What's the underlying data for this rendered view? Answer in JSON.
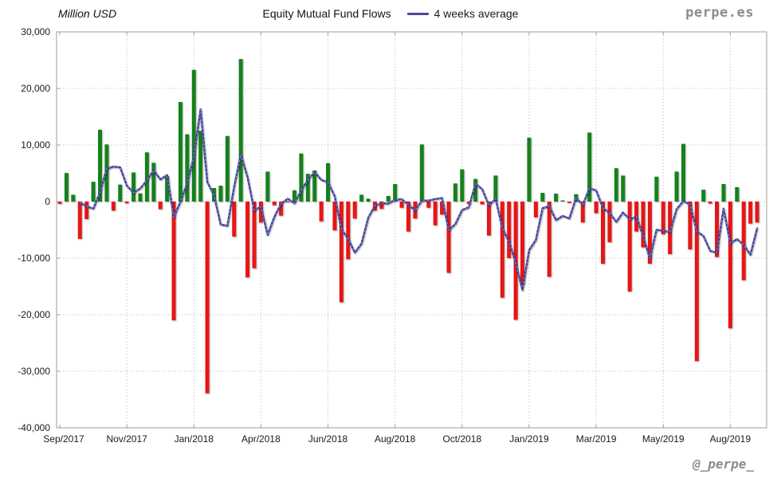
{
  "header": {
    "y_axis_title": "Million USD",
    "title": "Equity Mutual Fund Flows",
    "legend_label": "4 weeks average",
    "brand": "perpe.es"
  },
  "footer": {
    "handle": "@_perpe_"
  },
  "chart_data": {
    "type": "bar",
    "title": "Equity Mutual Fund Flows",
    "ylabel": "Million USD",
    "ylim": [
      -40000,
      30000
    ],
    "grid": true,
    "legend_position": "top",
    "frequency": "weekly",
    "moving_average_window": 4,
    "series": [
      {
        "name": "Weekly equity mutual fund flows (Million USD)",
        "type": "bar"
      },
      {
        "name": "4 weeks average",
        "type": "line",
        "derived": "4-week moving average of weekly values"
      }
    ],
    "values": [
      -400,
      5050,
      1200,
      -6600,
      -3100,
      3500,
      12700,
      10100,
      -1600,
      3000,
      -300,
      5150,
      1450,
      8700,
      6850,
      -1350,
      4500,
      -21000,
      17600,
      11900,
      23300,
      12500,
      -33900,
      2400,
      2800,
      11600,
      -6200,
      25200,
      -13400,
      -11800,
      -3700,
      5300,
      -650,
      -2500,
      -150,
      2000,
      8500,
      4900,
      5500,
      -3500,
      6800,
      -5100,
      -17800,
      -10200,
      -3000,
      1200,
      500,
      -1600,
      -1300,
      1000,
      3100,
      -1100,
      -5300,
      -3000,
      10100,
      -1100,
      -4200,
      -2300,
      -12600,
      3200,
      5700,
      -400,
      4000,
      -500,
      -6000,
      4600,
      -17000,
      -10000,
      -20900,
      -14700,
      11300,
      -2800,
      1550,
      -13300,
      1400,
      200,
      -250,
      1300,
      -3700,
      12200,
      -2050,
      -11000,
      -7200,
      5900,
      4600,
      -15900,
      -5300,
      -8100,
      -11000,
      4400,
      -5800,
      -9300,
      5300,
      10200,
      -8450,
      -28200,
      2100,
      -350,
      -9800,
      3100,
      -22400,
      2550,
      -13900,
      -3900,
      -3700
    ],
    "y_ticks": [
      {
        "value": 30000,
        "label": "30,000"
      },
      {
        "value": 20000,
        "label": "20,000"
      },
      {
        "value": 10000,
        "label": "10,000"
      },
      {
        "value": 0,
        "label": "0"
      },
      {
        "value": -10000,
        "label": "-10,000"
      },
      {
        "value": -20000,
        "label": "-20,000"
      },
      {
        "value": -30000,
        "label": "-30,000"
      },
      {
        "value": -40000,
        "label": "-40,000"
      }
    ],
    "x_ticks": [
      {
        "index": 0,
        "label": "Sep/2017"
      },
      {
        "index": 10,
        "label": "Nov/2017"
      },
      {
        "index": 20,
        "label": "Jan/2018"
      },
      {
        "index": 30,
        "label": "Apr/2018"
      },
      {
        "index": 40,
        "label": "Jun/2018"
      },
      {
        "index": 50,
        "label": "Aug/2018"
      },
      {
        "index": 60,
        "label": "Oct/2018"
      },
      {
        "index": 70,
        "label": "Jan/2019"
      },
      {
        "index": 80,
        "label": "Mar/2019"
      },
      {
        "index": 90,
        "label": "May/2019"
      },
      {
        "index": 100,
        "label": "Aug/2019"
      }
    ],
    "colors": {
      "positive": "#17811e",
      "negative": "#e61312",
      "line": "#3f3f99",
      "grid": "#c9c9c9",
      "border": "#9e9e9e",
      "text": "#1a1a1a"
    }
  }
}
